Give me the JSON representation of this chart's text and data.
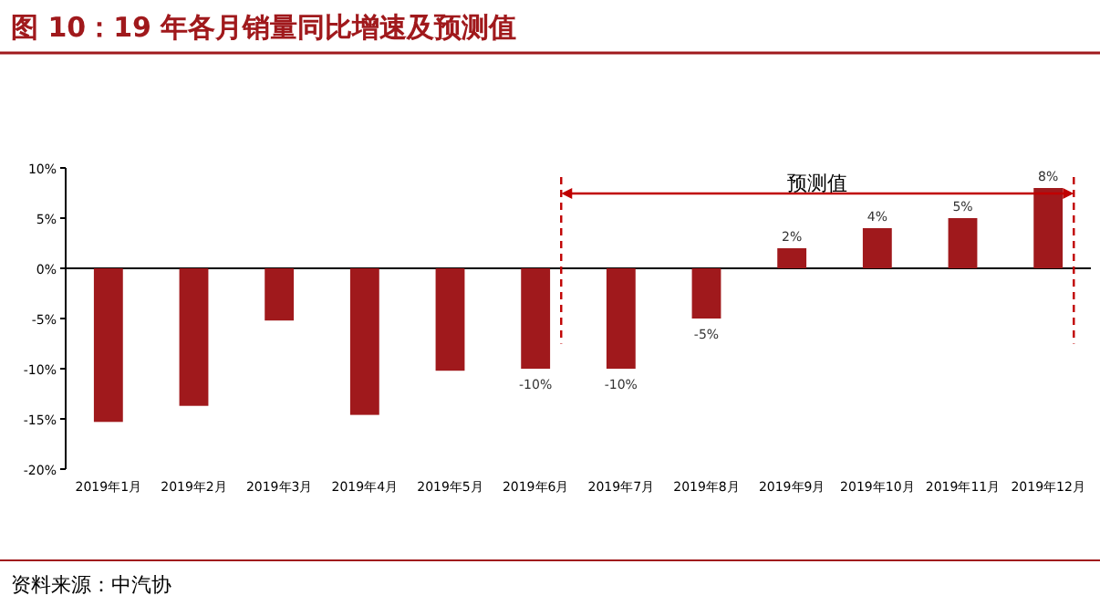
{
  "chart_data": {
    "type": "bar",
    "title": "图 10：19 年各月销量同比增速及预测值",
    "categories": [
      "2019年1月",
      "2019年2月",
      "2019年3月",
      "2019年4月",
      "2019年5月",
      "2019年6月",
      "2019年7月",
      "2019年8月",
      "2019年9月",
      "2019年10月",
      "2019年11月",
      "2019年12月"
    ],
    "values": [
      -15.3,
      -13.7,
      -5.2,
      -14.6,
      -10.2,
      -10,
      -10,
      -5,
      2,
      4,
      5,
      8
    ],
    "value_labels": [
      null,
      null,
      null,
      null,
      null,
      "-10%",
      "-10%",
      "-5%",
      "2%",
      "4%",
      "5%",
      "8%"
    ],
    "color": "#a0191c",
    "ylim": [
      -20,
      10
    ],
    "yticks": [
      {
        "value": -20,
        "label": "-20%"
      },
      {
        "value": -15,
        "label": "-15%"
      },
      {
        "value": -10,
        "label": "-10%"
      },
      {
        "value": -5,
        "label": "-5%"
      },
      {
        "value": 0,
        "label": "0%"
      },
      {
        "value": 5,
        "label": "5%"
      },
      {
        "value": 10,
        "label": "10%"
      }
    ],
    "annotations": [
      "预测值",
      "资料来源：中汽协"
    ]
  }
}
